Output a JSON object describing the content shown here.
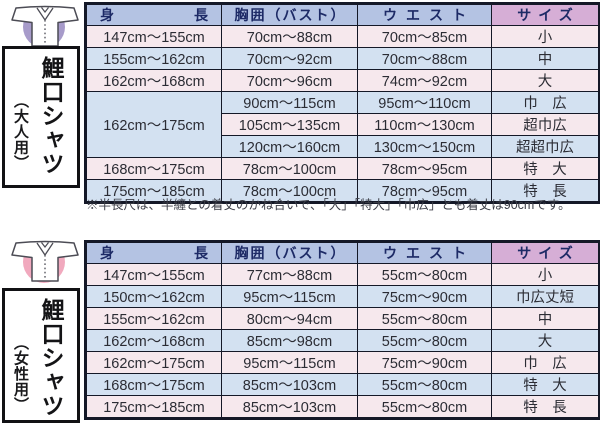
{
  "colors": {
    "row_pink": "#f6e8ed",
    "row_blue": "#d3e1f1",
    "header_blue_bg": "#b4c3e3",
    "header_purple_bg": "#d6aed6",
    "grid_border": "#141827",
    "header_text": "#1d2a66",
    "cell_text": "#2b2c34",
    "adult_circle": "#a79bca",
    "women_circle": "#f1a9be"
  },
  "note": "※半長尺は、半纏との着丈のかね合いで、「大」「特大」「巾広」とも着丈は90cmです。",
  "tables": [
    {
      "name": "adult",
      "product": "鯉口シャツ",
      "audience": "（大人用）",
      "icon": "koikuchi-shirt-icon",
      "headers": [
        "身長",
        "胸囲（バスト）",
        "ウエスト",
        "サイズ"
      ],
      "rows": [
        {
          "tone": "pink",
          "cells": [
            "147cm〜155cm",
            "70cm〜88cm",
            "70cm〜85cm",
            "小"
          ]
        },
        {
          "tone": "blue",
          "cells": [
            "155cm〜162cm",
            "70cm〜92cm",
            "70cm〜88cm",
            "中"
          ]
        },
        {
          "tone": "pink",
          "cells": [
            "162cm〜168cm",
            "70cm〜96cm",
            "74cm〜92cm",
            "大"
          ]
        },
        {
          "tone": "blue",
          "cells": [
            {
              "text": "162cm〜175cm",
              "rowspan": 3
            },
            "90cm〜115cm",
            "95cm〜110cm",
            "巾　広"
          ]
        },
        {
          "tone": "pink",
          "cells": [
            null,
            "105cm〜135cm",
            "110cm〜130cm",
            "超巾広"
          ]
        },
        {
          "tone": "blue",
          "cells": [
            null,
            "120cm〜160cm",
            "130cm〜150cm",
            "超超巾広"
          ]
        },
        {
          "tone": "pink",
          "cells": [
            "168cm〜175cm",
            "78cm〜100cm",
            "78cm〜95cm",
            "特　大"
          ]
        },
        {
          "tone": "blue",
          "cells": [
            "175cm〜185cm",
            "78cm〜100cm",
            "78cm〜95cm",
            "特　長"
          ]
        }
      ]
    },
    {
      "name": "women",
      "product": "鯉口シャツ",
      "audience": "（女性用）",
      "icon": "koikuchi-shirt-icon",
      "headers": [
        "身長",
        "胸囲（バスト）",
        "ウエスト",
        "サイズ"
      ],
      "rows": [
        {
          "tone": "pink",
          "cells": [
            "147cm〜155cm",
            "77cm〜88cm",
            "55cm〜80cm",
            "小"
          ]
        },
        {
          "tone": "blue",
          "cells": [
            "150cm〜162cm",
            "95cm〜115cm",
            "75cm〜90cm",
            "巾広丈短"
          ]
        },
        {
          "tone": "pink",
          "cells": [
            "155cm〜162cm",
            "80cm〜94cm",
            "55cm〜80cm",
            "中"
          ]
        },
        {
          "tone": "blue",
          "cells": [
            "162cm〜168cm",
            "85cm〜98cm",
            "55cm〜80cm",
            "大"
          ]
        },
        {
          "tone": "pink",
          "cells": [
            "162cm〜175cm",
            "95cm〜115cm",
            "75cm〜90cm",
            "巾　広"
          ]
        },
        {
          "tone": "blue",
          "cells": [
            "168cm〜175cm",
            "85cm〜103cm",
            "55cm〜80cm",
            "特　大"
          ]
        },
        {
          "tone": "pink",
          "cells": [
            "175cm〜185cm",
            "85cm〜103cm",
            "55cm〜80cm",
            "特　長"
          ]
        }
      ]
    }
  ]
}
